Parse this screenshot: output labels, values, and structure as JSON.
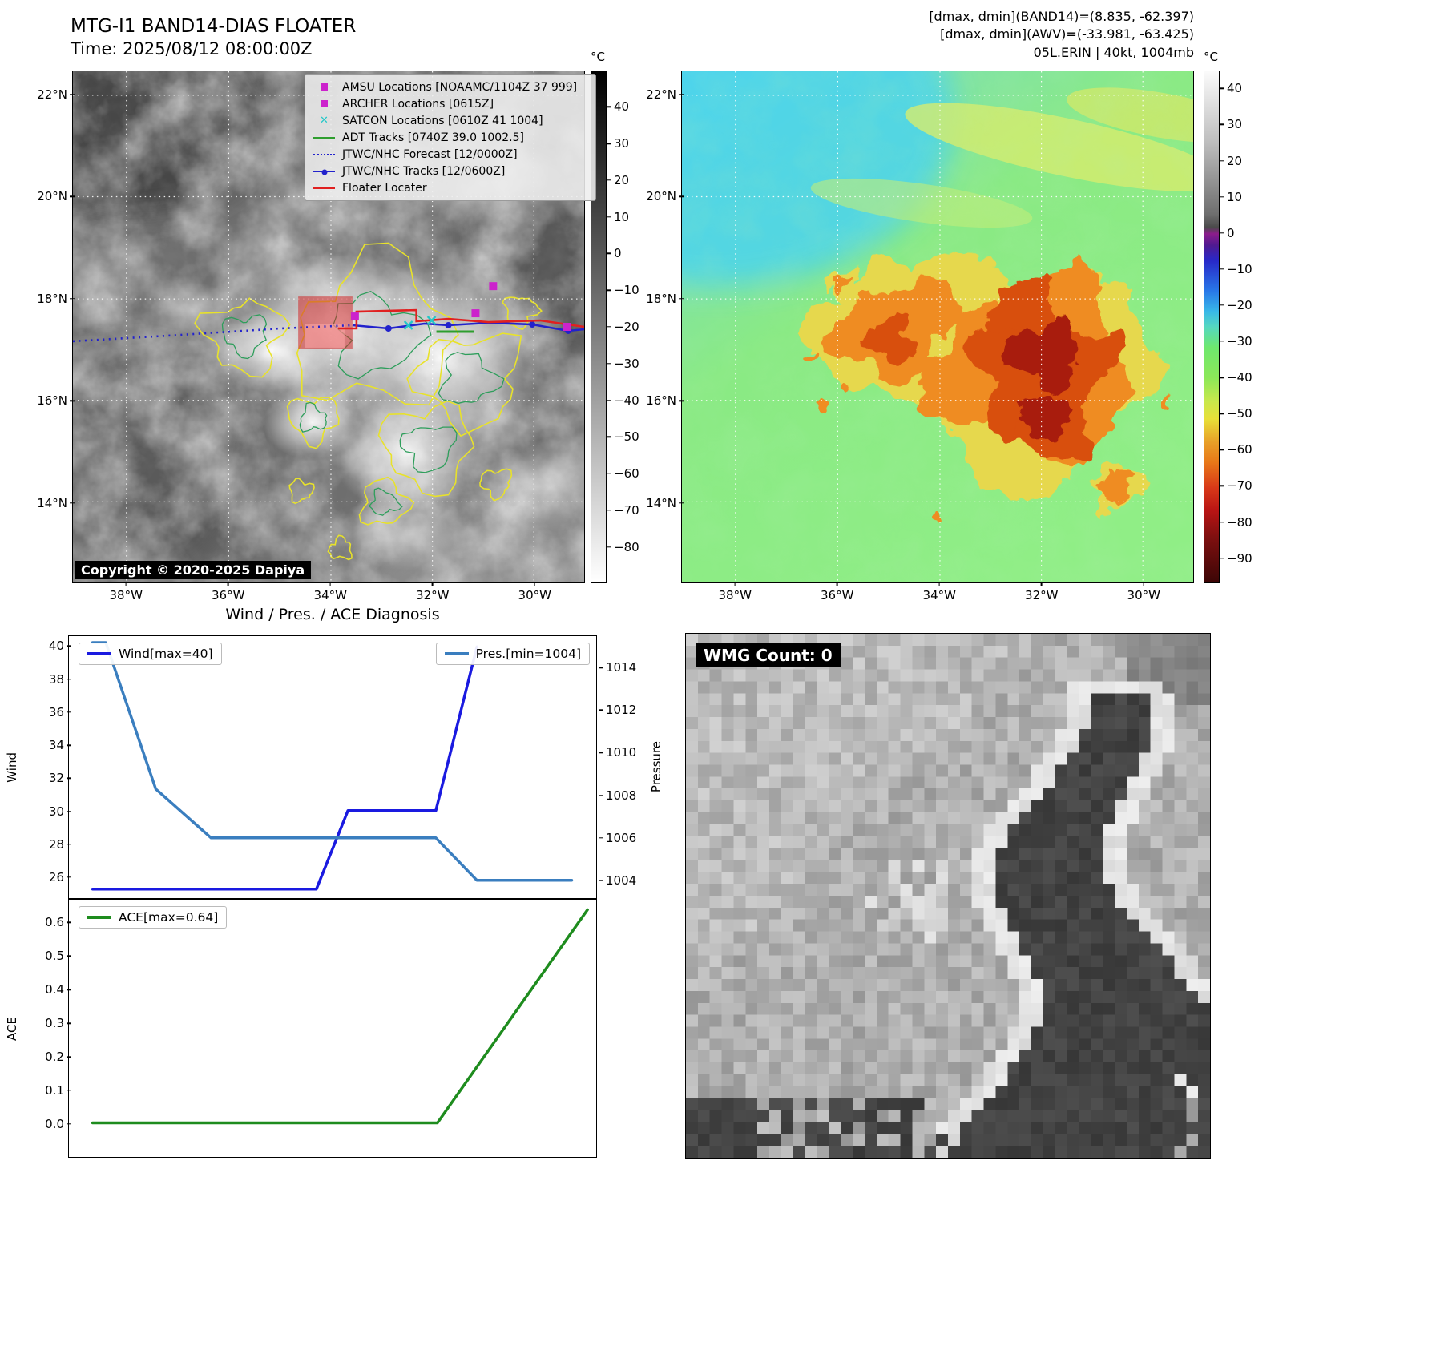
{
  "band14": {
    "title": "MTG-I1 BAND14-DIAS FLOATER",
    "time": "Time: 2025/08/12 08:00:00Z",
    "copyright": "Copyright © 2020-2025 Dapiya",
    "lat_ticks": [
      "22°N",
      "20°N",
      "18°N",
      "16°N",
      "14°N"
    ],
    "lon_ticks": [
      "38°W",
      "36°W",
      "34°W",
      "32°W",
      "30°W"
    ],
    "colorbar_unit": "°C",
    "colorbar_ticks": [
      "40",
      "30",
      "20",
      "10",
      "0",
      "−10",
      "−20",
      "−30",
      "−40",
      "−50",
      "−60",
      "−70",
      "−80"
    ],
    "legend": [
      {
        "label": "AMSU Locations [NOAAMC/1104Z 37 999]",
        "marker": "magenta-square"
      },
      {
        "label": "ARCHER Locations [0615Z]",
        "marker": "magenta-square"
      },
      {
        "label": "SATCON Locations [0610Z 41 1004]",
        "marker": "cyan-x"
      },
      {
        "label": "ADT Tracks [0740Z 39.0 1002.5]",
        "marker": "green-line"
      },
      {
        "label": "JTWC/NHC Forecast [12/0000Z]",
        "marker": "blue-dotted-line"
      },
      {
        "label": "JTWC/NHC Tracks [12/0600Z]",
        "marker": "blue-line-dot"
      },
      {
        "label": "Floater Locater",
        "marker": "red-line"
      }
    ]
  },
  "awv": {
    "header_lines": [
      "[dmax, dmin](BAND14)=(8.835, -62.397)",
      "[dmax, dmin](AWV)=(-33.981, -63.425)",
      "05L.ERIN | 40kt, 1004mb"
    ],
    "lat_ticks": [
      "22°N",
      "20°N",
      "18°N",
      "16°N",
      "14°N"
    ],
    "lon_ticks": [
      "38°W",
      "36°W",
      "34°W",
      "32°W",
      "30°W"
    ],
    "colorbar_unit": "°C",
    "colorbar_ticks": [
      "40",
      "30",
      "20",
      "10",
      "0",
      "−10",
      "−20",
      "−30",
      "−40",
      "−50",
      "−60",
      "−70",
      "−80",
      "−90"
    ]
  },
  "diagnosis": {
    "title": "Wind / Pres. / ACE Diagnosis",
    "wind_legend": "Wind[max=40]",
    "pres_legend": "Pres.[min=1004]",
    "ace_legend": "ACE[max=0.64]",
    "ylabel_wind": "Wind",
    "ylabel_pressure": "Pressure",
    "ylabel_ace": "ACE",
    "wind_ticks": [
      "40",
      "38",
      "36",
      "34",
      "32",
      "30",
      "28",
      "26"
    ],
    "pres_ticks": [
      "1014",
      "1012",
      "1010",
      "1008",
      "1006",
      "1004"
    ],
    "ace_ticks": [
      "0.6",
      "0.5",
      "0.4",
      "0.3",
      "0.2",
      "0.1",
      "0.0"
    ]
  },
  "wmg": {
    "label": "WMG Count: 0"
  },
  "colors": {
    "wind": "#1a1ae0",
    "pressure": "#3a7ebf",
    "ace": "#1e8c1e",
    "track_blue": "#2222cc",
    "track_red": "#e02020",
    "magenta": "#cc22cc",
    "cyan": "#22c8c8",
    "adt_green": "#2e9e2e",
    "yellow_contour": "#e8e22a"
  },
  "chart_data": [
    {
      "type": "line",
      "title": "Wind / Pres. / ACE Diagnosis",
      "xlim": [
        0,
        1
      ],
      "ylabel": "Wind",
      "y2label": "Pressure",
      "ylim": [
        24.7,
        40.65
      ],
      "y2lim": [
        1003.2,
        1015.5
      ],
      "yticks": [
        26,
        28,
        30,
        32,
        34,
        36,
        38,
        40
      ],
      "y2ticks": [
        1004,
        1006,
        1008,
        1010,
        1012,
        1014
      ],
      "grid": false,
      "legend_position": "upper-left and upper-right",
      "series": [
        {
          "name": "Wind[max=40]",
          "axis": "left",
          "color": "#1a1ae0",
          "width": 3.5,
          "points": [
            [
              0.045,
              25.2
            ],
            [
              0.47,
              25.2
            ],
            [
              0.53,
              30
            ],
            [
              0.697,
              30
            ],
            [
              0.775,
              40
            ]
          ]
        },
        {
          "name": "Pres.[min=1004]",
          "axis": "right",
          "color": "#3a7ebf",
          "width": 3.5,
          "points": [
            [
              0.045,
              1015.2
            ],
            [
              0.07,
              1015.2
            ],
            [
              0.165,
              1008.3
            ],
            [
              0.27,
              1006
            ],
            [
              0.697,
              1006
            ],
            [
              0.775,
              1004
            ],
            [
              0.955,
              1004
            ]
          ]
        }
      ]
    },
    {
      "type": "line",
      "title": "ACE",
      "xlim": [
        0,
        1
      ],
      "ylabel": "ACE",
      "ylim": [
        -0.1,
        0.67
      ],
      "yticks": [
        0.0,
        0.1,
        0.2,
        0.3,
        0.4,
        0.5,
        0.6
      ],
      "grid": false,
      "legend_position": "upper-left",
      "series": [
        {
          "name": "ACE[max=0.64]",
          "axis": "left",
          "color": "#1e8c1e",
          "width": 3.5,
          "points": [
            [
              0.045,
              0.0
            ],
            [
              0.7,
              0.0
            ],
            [
              0.985,
              0.64
            ]
          ]
        }
      ]
    }
  ]
}
